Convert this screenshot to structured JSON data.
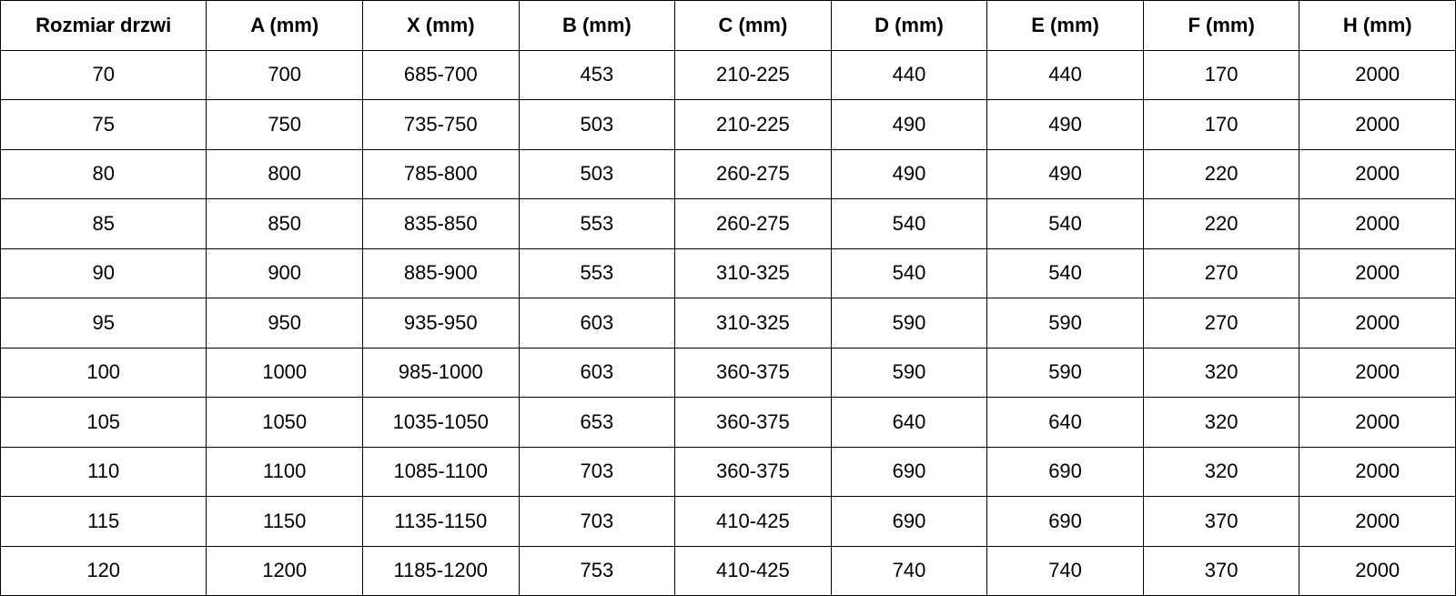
{
  "table": {
    "header": [
      "Rozmiar drzwi",
      "A (mm)",
      "X (mm)",
      "B (mm)",
      "C (mm)",
      "D (mm)",
      "E (mm)",
      "F (mm)",
      "H (mm)"
    ],
    "rows": [
      [
        "70",
        "700",
        "685-700",
        "453",
        "210-225",
        "440",
        "440",
        "170",
        "2000"
      ],
      [
        "75",
        "750",
        "735-750",
        "503",
        "210-225",
        "490",
        "490",
        "170",
        "2000"
      ],
      [
        "80",
        "800",
        "785-800",
        "503",
        "260-275",
        "490",
        "490",
        "220",
        "2000"
      ],
      [
        "85",
        "850",
        "835-850",
        "553",
        "260-275",
        "540",
        "540",
        "220",
        "2000"
      ],
      [
        "90",
        "900",
        "885-900",
        "553",
        "310-325",
        "540",
        "540",
        "270",
        "2000"
      ],
      [
        "95",
        "950",
        "935-950",
        "603",
        "310-325",
        "590",
        "590",
        "270",
        "2000"
      ],
      [
        "100",
        "1000",
        "985-1000",
        "603",
        "360-375",
        "590",
        "590",
        "320",
        "2000"
      ],
      [
        "105",
        "1050",
        "1035-1050",
        "653",
        "360-375",
        "640",
        "640",
        "320",
        "2000"
      ],
      [
        "110",
        "1100",
        "1085-1100",
        "703",
        "360-375",
        "690",
        "690",
        "320",
        "2000"
      ],
      [
        "115",
        "1150",
        "1135-1150",
        "703",
        "410-425",
        "690",
        "690",
        "370",
        "2000"
      ],
      [
        "120",
        "1200",
        "1185-1200",
        "753",
        "410-425",
        "740",
        "740",
        "370",
        "2000"
      ]
    ]
  }
}
